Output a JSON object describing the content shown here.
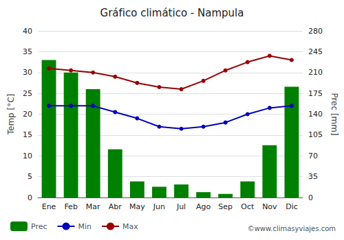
{
  "chart_data": {
    "type": "combo",
    "title": "Gráfico climático - Nampula",
    "categories": [
      "Ene",
      "Feb",
      "Mar",
      "Abr",
      "May",
      "Jun",
      "Jul",
      "Ago",
      "Sep",
      "Oct",
      "Nov",
      "Dic"
    ],
    "series": [
      {
        "name": "Prec",
        "type": "bar",
        "axis": "y2",
        "color": "#008000",
        "values": [
          231,
          210,
          182,
          81,
          27,
          18,
          22,
          9,
          6,
          27,
          88,
          186
        ]
      },
      {
        "name": "Min",
        "type": "line",
        "marker": "circle",
        "color": "#0000bb",
        "values": [
          22,
          22,
          22,
          20.5,
          19,
          17,
          16.5,
          17,
          18,
          20,
          21.5,
          22
        ]
      },
      {
        "name": "Max",
        "type": "line",
        "marker": "circle",
        "color": "#990000",
        "values": [
          31,
          30.5,
          30,
          29,
          27.5,
          26.5,
          26,
          28,
          30.5,
          32.5,
          34,
          33
        ]
      }
    ],
    "ylabel": "Temp [°C]",
    "y2label": "Prec [mm]",
    "ylim": [
      0,
      40
    ],
    "yticks": [
      0,
      5,
      10,
      15,
      20,
      25,
      30,
      35,
      40
    ],
    "y2lim": [
      0,
      280
    ],
    "y2ticks": [
      0,
      35,
      70,
      105,
      140,
      175,
      210,
      245,
      280
    ],
    "grid": true,
    "legend": "lower left",
    "annotation": "©www.climasyviajes.com"
  }
}
